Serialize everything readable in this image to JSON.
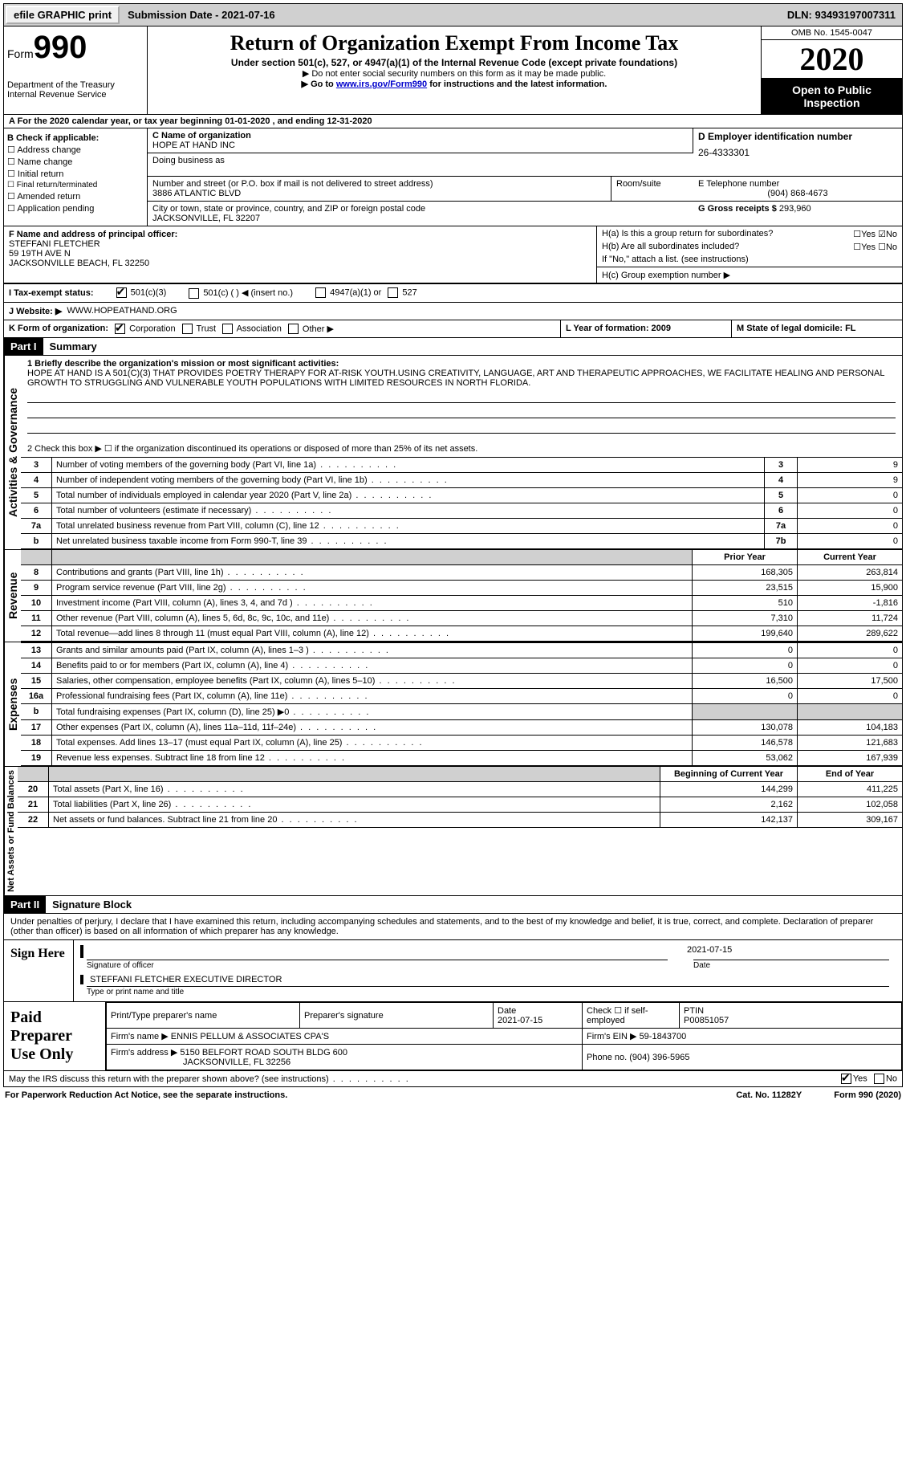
{
  "topbar": {
    "efile": "efile GRAPHIC print",
    "submission_label": "Submission Date - ",
    "submission_date": "2021-07-16",
    "dln_label": "DLN: ",
    "dln": "93493197007311"
  },
  "header": {
    "form_label": "Form",
    "form_num": "990",
    "dept": "Department of the Treasury\nInternal Revenue Service",
    "title": "Return of Organization Exempt From Income Tax",
    "subtitle": "Under section 501(c), 527, or 4947(a)(1) of the Internal Revenue Code (except private foundations)",
    "line1": "▶ Do not enter social security numbers on this form as it may be made public.",
    "line2_pre": "▶ Go to ",
    "line2_link": "www.irs.gov/Form990",
    "line2_post": " for instructions and the latest information.",
    "omb": "OMB No. 1545-0047",
    "year": "2020",
    "open": "Open to Public Inspection"
  },
  "lineA": "A For the 2020 calendar year, or tax year beginning 01-01-2020    , and ending 12-31-2020",
  "colB": {
    "title": "B Check if applicable:",
    "items": [
      "Address change",
      "Name change",
      "Initial return",
      "Final return/terminated",
      "Amended return",
      "Application pending"
    ]
  },
  "colC": {
    "name_label": "C Name of organization",
    "name": "HOPE AT HAND INC",
    "dba_label": "Doing business as",
    "addr_label": "Number and street (or P.O. box if mail is not delivered to street address)",
    "room_label": "Room/suite",
    "addr": "3886 ATLANTIC BLVD",
    "city_label": "City or town, state or province, country, and ZIP or foreign postal code",
    "city": "JACKSONVILLE, FL  32207"
  },
  "colD": {
    "ein_label": "D Employer identification number",
    "ein": "26-4333301"
  },
  "colE": {
    "label": "E Telephone number",
    "phone": "(904) 868-4673"
  },
  "colG": {
    "label": "G Gross receipts $ ",
    "val": "293,960"
  },
  "colF": {
    "label": "F  Name and address of principal officer:",
    "name": "STEFFANI FLETCHER",
    "addr1": "59 19TH AVE N",
    "addr2": "JACKSONVILLE BEACH, FL  32250"
  },
  "colH": {
    "a": "H(a)  Is this a group return for subordinates?",
    "b": "H(b)  Are all subordinates included?",
    "bnote": "If \"No,\" attach a list. (see instructions)",
    "c": "H(c)  Group exemption number ▶"
  },
  "rowI": {
    "label": "I   Tax-exempt status:",
    "opts": [
      "501(c)(3)",
      "501(c) (  ) ◀ (insert no.)",
      "4947(a)(1) or",
      "527"
    ]
  },
  "rowJ": {
    "label": "J   Website: ▶",
    "val": "WWW.HOPEATHAND.ORG"
  },
  "rowK": {
    "label": "K Form of organization:",
    "opts": [
      "Corporation",
      "Trust",
      "Association",
      "Other ▶"
    ]
  },
  "rowLM": {
    "l": "L Year of formation: 2009",
    "m": "M State of legal domicile: FL"
  },
  "part1": {
    "num": "Part I",
    "title": "Summary"
  },
  "summary": {
    "line1_label": "1   Briefly describe the organization's mission or most significant activities:",
    "line1_text": "HOPE AT HAND IS A 501(C)(3) THAT PROVIDES POETRY THERAPY FOR AT-RISK YOUTH.USING CREATIVITY, LANGUAGE, ART AND THERAPEUTIC APPROACHES, WE FACILITATE HEALING AND PERSONAL GROWTH TO STRUGGLING AND VULNERABLE YOUTH POPULATIONS WITH LIMITED RESOURCES IN NORTH FLORIDA.",
    "line2": "2   Check this box ▶ ☐  if the organization discontinued its operations or disposed of more than 25% of its net assets.",
    "gov_rows": [
      {
        "n": "3",
        "t": "Number of voting members of the governing body (Part VI, line 1a)",
        "box": "3",
        "v": "9"
      },
      {
        "n": "4",
        "t": "Number of independent voting members of the governing body (Part VI, line 1b)",
        "box": "4",
        "v": "9"
      },
      {
        "n": "5",
        "t": "Total number of individuals employed in calendar year 2020 (Part V, line 2a)",
        "box": "5",
        "v": "0"
      },
      {
        "n": "6",
        "t": "Total number of volunteers (estimate if necessary)",
        "box": "6",
        "v": "0"
      },
      {
        "n": "7a",
        "t": "Total unrelated business revenue from Part VIII, column (C), line 12",
        "box": "7a",
        "v": "0"
      },
      {
        "n": "b",
        "t": "Net unrelated business taxable income from Form 990-T, line 39",
        "box": "7b",
        "v": "0"
      }
    ],
    "col_headers": {
      "prior": "Prior Year",
      "current": "Current Year"
    },
    "revenue": [
      {
        "n": "8",
        "t": "Contributions and grants (Part VIII, line 1h)",
        "p": "168,305",
        "c": "263,814"
      },
      {
        "n": "9",
        "t": "Program service revenue (Part VIII, line 2g)",
        "p": "23,515",
        "c": "15,900"
      },
      {
        "n": "10",
        "t": "Investment income (Part VIII, column (A), lines 3, 4, and 7d )",
        "p": "510",
        "c": "-1,816"
      },
      {
        "n": "11",
        "t": "Other revenue (Part VIII, column (A), lines 5, 6d, 8c, 9c, 10c, and 11e)",
        "p": "7,310",
        "c": "11,724"
      },
      {
        "n": "12",
        "t": "Total revenue—add lines 8 through 11 (must equal Part VIII, column (A), line 12)",
        "p": "199,640",
        "c": "289,622"
      }
    ],
    "expenses": [
      {
        "n": "13",
        "t": "Grants and similar amounts paid (Part IX, column (A), lines 1–3 )",
        "p": "0",
        "c": "0"
      },
      {
        "n": "14",
        "t": "Benefits paid to or for members (Part IX, column (A), line 4)",
        "p": "0",
        "c": "0"
      },
      {
        "n": "15",
        "t": "Salaries, other compensation, employee benefits (Part IX, column (A), lines 5–10)",
        "p": "16,500",
        "c": "17,500"
      },
      {
        "n": "16a",
        "t": "Professional fundraising fees (Part IX, column (A), line 11e)",
        "p": "0",
        "c": "0"
      },
      {
        "n": "b",
        "t": "Total fundraising expenses (Part IX, column (D), line 25) ▶0",
        "p": "",
        "c": "",
        "shade": true
      },
      {
        "n": "17",
        "t": "Other expenses (Part IX, column (A), lines 11a–11d, 11f–24e)",
        "p": "130,078",
        "c": "104,183"
      },
      {
        "n": "18",
        "t": "Total expenses. Add lines 13–17 (must equal Part IX, column (A), line 25)",
        "p": "146,578",
        "c": "121,683"
      },
      {
        "n": "19",
        "t": "Revenue less expenses. Subtract line 18 from line 12",
        "p": "53,062",
        "c": "167,939"
      }
    ],
    "netassets_headers": {
      "prior": "Beginning of Current Year",
      "current": "End of Year"
    },
    "netassets": [
      {
        "n": "20",
        "t": "Total assets (Part X, line 16)",
        "p": "144,299",
        "c": "411,225"
      },
      {
        "n": "21",
        "t": "Total liabilities (Part X, line 26)",
        "p": "2,162",
        "c": "102,058"
      },
      {
        "n": "22",
        "t": "Net assets or fund balances. Subtract line 21 from line 20",
        "p": "142,137",
        "c": "309,167"
      }
    ]
  },
  "part2": {
    "num": "Part II",
    "title": "Signature Block"
  },
  "sig": {
    "decl": "Under penalties of perjury, I declare that I have examined this return, including accompanying schedules and statements, and to the best of my knowledge and belief, it is true, correct, and complete. Declaration of preparer (other than officer) is based on all information of which preparer has any knowledge.",
    "sign_here": "Sign Here",
    "sig_officer": "Signature of officer",
    "date": "Date",
    "sig_date": "2021-07-15",
    "name_title": "STEFFANI FLETCHER  EXECUTIVE DIRECTOR",
    "type_name": "Type or print name and title",
    "paid": "Paid Preparer Use Only",
    "prep_name_label": "Print/Type preparer's name",
    "prep_sig_label": "Preparer's signature",
    "prep_date_label": "Date",
    "prep_date": "2021-07-15",
    "check_self": "Check ☐ if self-employed",
    "ptin_label": "PTIN",
    "ptin": "P00851057",
    "firm_name_label": "Firm's name    ▶ ",
    "firm_name": "ENNIS PELLUM & ASSOCIATES CPA'S",
    "firm_ein_label": "Firm's EIN ▶ ",
    "firm_ein": "59-1843700",
    "firm_addr_label": "Firm's address ▶ ",
    "firm_addr": "5150 BELFORT ROAD SOUTH BLDG 600",
    "firm_city": "JACKSONVILLE, FL  32256",
    "phone_label": "Phone no. ",
    "phone": "(904) 396-5965"
  },
  "footer": {
    "discuss": "May the IRS discuss this return with the preparer shown above? (see instructions)",
    "paperwork": "For Paperwork Reduction Act Notice, see the separate instructions.",
    "cat": "Cat. No. 11282Y",
    "formpage": "Form 990 (2020)"
  },
  "labels": {
    "activities": "Activities & Governance",
    "revenue": "Revenue",
    "expenses": "Expenses",
    "netassets": "Net Assets or Fund Balances",
    "yes": "Yes",
    "no": "No"
  }
}
